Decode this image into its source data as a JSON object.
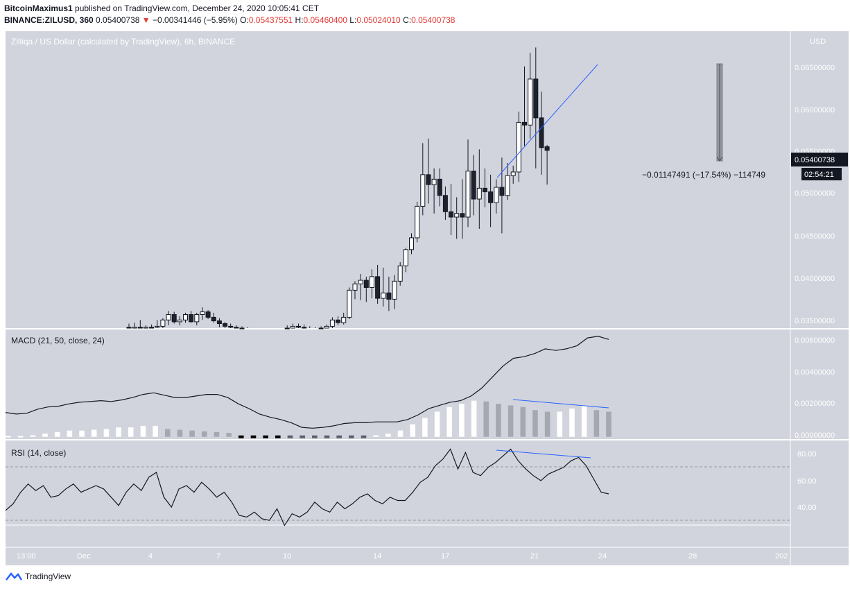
{
  "header": {
    "author": "BitcoinMaximus1",
    "published": "published on TradingView.com, December 24, 2020 10:05:41 CET",
    "symbol": "BINANCE:ZILUSD, 360",
    "price": "0.05400738",
    "change_arrow": "▼",
    "change": "−0.00341446 (−5.95%)",
    "o_label": "O:",
    "o": "0.05437551",
    "h_label": "H:",
    "h": "0.05460400",
    "l_label": "L:",
    "l": "0.05024010",
    "c_label": "C:",
    "c": "0.05400738"
  },
  "main_pane": {
    "title": "Zilliqa / US Dollar (calculated by TradingView), 6h, BINANCE",
    "currency": "USD",
    "price_ticks": [
      "0.06500000",
      "0.06000000",
      "0.05500000",
      "0.05000000",
      "0.04500000",
      "0.04000000",
      "0.03500000"
    ],
    "last_price_label": "0.05400738",
    "countdown_label": "02:54:21",
    "measure_label": "−0.01147491 (−17.54%) −114749"
  },
  "macd_pane": {
    "title": "MACD (21, 50, close, 24)",
    "ticks": [
      "0.00600000",
      "0.00400000",
      "0.00200000",
      "0.00000000"
    ]
  },
  "rsi_pane": {
    "title": "RSI (14, close)",
    "ticks": [
      "80.00",
      "60.00",
      "40.00"
    ]
  },
  "time_axis": [
    "13:00",
    "Dec",
    "4",
    "7",
    "10",
    "14",
    "17",
    "21",
    "24",
    "28",
    "202"
  ],
  "footer": {
    "brand": "TradingView"
  },
  "colors": {
    "pane_bg": "#d1d4dc",
    "up_body": "#ffffff",
    "down_body": "#1e222d",
    "trendline": "#2962ff",
    "hist_white": "#ffffff",
    "hist_gray": "#a5a8b0",
    "hist_black": "#000000",
    "hist_dark": "#5d606b",
    "label_dark": "#131722",
    "red": "#e53935"
  },
  "chart_data": [
    {
      "type": "candlestick",
      "title": "Zilliqa / US Dollar (calculated by TradingView), 6h, BINANCE",
      "x_axis_labels": [
        "13:00",
        "Dec",
        "4",
        "7",
        "10",
        "14",
        "17",
        "21",
        "24",
        "28",
        "202"
      ],
      "ylim": [
        0.0343,
        0.0672
      ],
      "candles": [
        {
          "o": 0.0344,
          "h": 0.0348,
          "l": 0.034,
          "c": 0.0343
        },
        {
          "o": 0.0343,
          "h": 0.0349,
          "l": 0.034,
          "c": 0.0344
        },
        {
          "o": 0.0344,
          "h": 0.0352,
          "l": 0.0341,
          "c": 0.0343
        },
        {
          "o": 0.0343,
          "h": 0.0346,
          "l": 0.034,
          "c": 0.0344
        },
        {
          "o": 0.0344,
          "h": 0.0347,
          "l": 0.0341,
          "c": 0.0343
        },
        {
          "o": 0.0344,
          "h": 0.0352,
          "l": 0.034,
          "c": 0.0345
        },
        {
          "o": 0.0345,
          "h": 0.0354,
          "l": 0.0342,
          "c": 0.0352
        },
        {
          "o": 0.0352,
          "h": 0.0362,
          "l": 0.0346,
          "c": 0.0358
        },
        {
          "o": 0.0358,
          "h": 0.0361,
          "l": 0.0348,
          "c": 0.035
        },
        {
          "o": 0.035,
          "h": 0.0356,
          "l": 0.0346,
          "c": 0.0352
        },
        {
          "o": 0.0352,
          "h": 0.036,
          "l": 0.0349,
          "c": 0.0358
        },
        {
          "o": 0.0358,
          "h": 0.0362,
          "l": 0.0349,
          "c": 0.035
        },
        {
          "o": 0.035,
          "h": 0.036,
          "l": 0.0346,
          "c": 0.0358
        },
        {
          "o": 0.0358,
          "h": 0.0366,
          "l": 0.0352,
          "c": 0.0361
        },
        {
          "o": 0.0361,
          "h": 0.0363,
          "l": 0.0353,
          "c": 0.0355
        },
        {
          "o": 0.0355,
          "h": 0.036,
          "l": 0.0349,
          "c": 0.0351
        },
        {
          "o": 0.0351,
          "h": 0.0354,
          "l": 0.0344,
          "c": 0.0348
        },
        {
          "o": 0.0348,
          "h": 0.035,
          "l": 0.0343,
          "c": 0.0345
        },
        {
          "o": 0.0345,
          "h": 0.0348,
          "l": 0.0342,
          "c": 0.0344
        },
        {
          "o": 0.0344,
          "h": 0.0346,
          "l": 0.0341,
          "c": 0.0343
        },
        {
          "o": 0.0343,
          "h": 0.0345,
          "l": 0.034,
          "c": 0.0342
        },
        {
          "o": 0.0342,
          "h": 0.0344,
          "l": 0.0339,
          "c": 0.0341
        },
        {
          "o": 0.0341,
          "h": 0.0343,
          "l": 0.0338,
          "c": 0.034
        },
        {
          "o": 0.034,
          "h": 0.0342,
          "l": 0.0338,
          "c": 0.0339
        },
        {
          "o": 0.0339,
          "h": 0.0342,
          "l": 0.0337,
          "c": 0.034
        },
        {
          "o": 0.034,
          "h": 0.0343,
          "l": 0.0338,
          "c": 0.0341
        },
        {
          "o": 0.0341,
          "h": 0.0343,
          "l": 0.0338,
          "c": 0.034
        },
        {
          "o": 0.034,
          "h": 0.0343,
          "l": 0.0338,
          "c": 0.0342
        },
        {
          "o": 0.0342,
          "h": 0.0346,
          "l": 0.0339,
          "c": 0.0343
        },
        {
          "o": 0.0343,
          "h": 0.0348,
          "l": 0.034,
          "c": 0.0345
        },
        {
          "o": 0.0345,
          "h": 0.0348,
          "l": 0.0341,
          "c": 0.0344
        },
        {
          "o": 0.0344,
          "h": 0.0347,
          "l": 0.034,
          "c": 0.0342
        },
        {
          "o": 0.0342,
          "h": 0.0345,
          "l": 0.0339,
          "c": 0.0341
        },
        {
          "o": 0.0341,
          "h": 0.0344,
          "l": 0.0339,
          "c": 0.0342
        },
        {
          "o": 0.0342,
          "h": 0.0345,
          "l": 0.034,
          "c": 0.0343
        },
        {
          "o": 0.0343,
          "h": 0.0347,
          "l": 0.0341,
          "c": 0.0345
        },
        {
          "o": 0.0345,
          "h": 0.0355,
          "l": 0.0343,
          "c": 0.0352
        },
        {
          "o": 0.0352,
          "h": 0.0356,
          "l": 0.0346,
          "c": 0.0349
        },
        {
          "o": 0.0349,
          "h": 0.036,
          "l": 0.0347,
          "c": 0.0355
        },
        {
          "o": 0.0355,
          "h": 0.0388,
          "l": 0.0353,
          "c": 0.0385
        },
        {
          "o": 0.0385,
          "h": 0.0395,
          "l": 0.0375,
          "c": 0.0392
        },
        {
          "o": 0.0392,
          "h": 0.0403,
          "l": 0.0374,
          "c": 0.0396
        },
        {
          "o": 0.0396,
          "h": 0.04,
          "l": 0.0372,
          "c": 0.0388
        },
        {
          "o": 0.0388,
          "h": 0.0408,
          "l": 0.0376,
          "c": 0.04
        },
        {
          "o": 0.04,
          "h": 0.0413,
          "l": 0.037,
          "c": 0.0376
        },
        {
          "o": 0.0376,
          "h": 0.041,
          "l": 0.0367,
          "c": 0.0382
        },
        {
          "o": 0.0382,
          "h": 0.04,
          "l": 0.0362,
          "c": 0.0375
        },
        {
          "o": 0.0375,
          "h": 0.0402,
          "l": 0.0364,
          "c": 0.0395
        },
        {
          "o": 0.0395,
          "h": 0.0416,
          "l": 0.039,
          "c": 0.0412
        },
        {
          "o": 0.0412,
          "h": 0.0432,
          "l": 0.0405,
          "c": 0.043
        },
        {
          "o": 0.043,
          "h": 0.0448,
          "l": 0.0425,
          "c": 0.0443
        },
        {
          "o": 0.0443,
          "h": 0.0483,
          "l": 0.0438,
          "c": 0.0478
        },
        {
          "o": 0.0478,
          "h": 0.0548,
          "l": 0.0468,
          "c": 0.0513
        },
        {
          "o": 0.0513,
          "h": 0.0553,
          "l": 0.0481,
          "c": 0.0502
        },
        {
          "o": 0.0502,
          "h": 0.052,
          "l": 0.047,
          "c": 0.0508
        },
        {
          "o": 0.0508,
          "h": 0.052,
          "l": 0.0478,
          "c": 0.049
        },
        {
          "o": 0.049,
          "h": 0.05,
          "l": 0.0463,
          "c": 0.0472
        },
        {
          "o": 0.0472,
          "h": 0.0503,
          "l": 0.0446,
          "c": 0.0466
        },
        {
          "o": 0.0466,
          "h": 0.0488,
          "l": 0.0442,
          "c": 0.047
        },
        {
          "o": 0.047,
          "h": 0.0508,
          "l": 0.0442,
          "c": 0.0466
        },
        {
          "o": 0.0466,
          "h": 0.0552,
          "l": 0.0455,
          "c": 0.0517
        },
        {
          "o": 0.0517,
          "h": 0.0535,
          "l": 0.0468,
          "c": 0.0486
        },
        {
          "o": 0.0486,
          "h": 0.0541,
          "l": 0.0453,
          "c": 0.0498
        },
        {
          "o": 0.0498,
          "h": 0.052,
          "l": 0.0477,
          "c": 0.0494
        },
        {
          "o": 0.0494,
          "h": 0.0513,
          "l": 0.0455,
          "c": 0.0482
        },
        {
          "o": 0.0482,
          "h": 0.0508,
          "l": 0.047,
          "c": 0.0499
        },
        {
          "o": 0.0499,
          "h": 0.0532,
          "l": 0.0448,
          "c": 0.049
        },
        {
          "o": 0.049,
          "h": 0.0526,
          "l": 0.0485,
          "c": 0.0512
        },
        {
          "o": 0.0512,
          "h": 0.0523,
          "l": 0.0503,
          "c": 0.0516
        },
        {
          "o": 0.0516,
          "h": 0.0583,
          "l": 0.0505,
          "c": 0.0571
        },
        {
          "o": 0.0571,
          "h": 0.0633,
          "l": 0.0545,
          "c": 0.0568
        },
        {
          "o": 0.0568,
          "h": 0.0648,
          "l": 0.0553,
          "c": 0.0619
        },
        {
          "o": 0.0619,
          "h": 0.0654,
          "l": 0.052,
          "c": 0.0576
        },
        {
          "o": 0.0576,
          "h": 0.0605,
          "l": 0.0513,
          "c": 0.0543
        },
        {
          "o": 0.0544,
          "h": 0.0546,
          "l": 0.0502,
          "c": 0.054
        }
      ]
    },
    {
      "type": "line",
      "title": "MACD (21, 50, close, 24)",
      "ylim": [
        -0.0001,
        0.0067
      ],
      "series": [
        {
          "name": "MACD",
          "values": [
            0.00155,
            0.00145,
            0.0015,
            0.00175,
            0.0019,
            0.00195,
            0.0021,
            0.0022,
            0.00225,
            0.0023,
            0.00225,
            0.00235,
            0.0025,
            0.0027,
            0.0028,
            0.00265,
            0.0025,
            0.0025,
            0.0026,
            0.0027,
            0.0027,
            0.0025,
            0.0021,
            0.0018,
            0.00145,
            0.00125,
            0.0011,
            0.0009,
            0.0006,
            0.00055,
            0.0006,
            0.0007,
            0.00085,
            0.0009,
            0.0009,
            0.00095,
            0.00095,
            0.00095,
            0.0011,
            0.0014,
            0.0018,
            0.002,
            0.0022,
            0.0023,
            0.0026,
            0.0031,
            0.0038,
            0.0045,
            0.005,
            0.0051,
            0.0053,
            0.0056,
            0.0055,
            0.0056,
            0.0058,
            0.0063,
            0.0064,
            0.0062
          ]
        },
        {
          "name": "Histogram",
          "values": [
            5e-05,
            5e-05,
            0.0001,
            0.0002,
            0.0003,
            0.0004,
            0.0004,
            0.00045,
            0.0005,
            0.0006,
            0.0006,
            0.0007,
            0.0007,
            0.0005,
            0.00045,
            0.0004,
            0.00035,
            0.0003,
            0.00025,
            -0.0003,
            -0.0003,
            -0.0003,
            -0.0003,
            -0.0003,
            -0.0003,
            -0.0003,
            -0.0003,
            -0.0003,
            -0.0003,
            -0.0003,
            0.0001,
            0.0002,
            0.0004,
            0.0008,
            0.0012,
            0.0016,
            0.0019,
            0.0021,
            0.0023,
            0.00225,
            0.0021,
            0.002,
            0.0019,
            0.0017,
            0.0016,
            0.0016,
            0.0018,
            0.002,
            0.0017,
            0.0016
          ]
        }
      ]
    },
    {
      "type": "line",
      "title": "RSI (14, close)",
      "ylim": [
        26,
        88
      ],
      "series": [
        {
          "name": "RSI",
          "values": [
            47,
            51,
            58,
            63,
            59,
            62,
            55,
            56,
            60,
            63,
            58,
            60,
            62,
            60,
            55,
            50,
            58,
            63,
            59,
            67,
            70,
            55,
            49,
            60,
            62,
            58,
            64,
            60,
            55,
            58,
            52,
            44,
            43,
            46,
            42,
            41,
            48,
            38,
            45,
            43,
            46,
            52,
            48,
            46,
            52,
            48,
            51,
            55,
            57,
            53,
            51,
            55,
            53,
            53,
            58,
            64,
            67,
            74,
            78,
            84,
            72,
            82,
            70,
            68,
            73,
            76,
            80,
            84,
            77,
            72,
            68,
            65,
            69,
            71,
            73,
            77,
            79,
            74,
            66,
            58,
            57
          ]
        },
        {
          "name": "RSI Max",
          "values": [
            84,
            77
          ]
        }
      ]
    }
  ]
}
